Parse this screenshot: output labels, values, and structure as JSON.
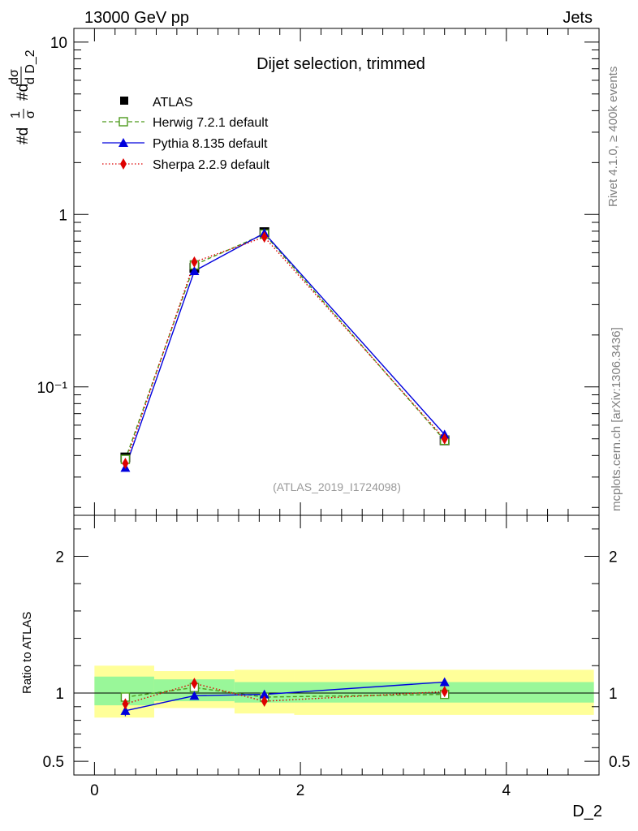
{
  "header": {
    "left_label": "13000 GeV pp",
    "right_label": "Jets"
  },
  "side_labels": {
    "rivet": "Rivet 4.1.0, ≥ 400k events",
    "site": "mcplots.cern.ch [arXiv:1306.3436]"
  },
  "chart_data": [
    {
      "type": "line",
      "panel": "main",
      "title": "Dijet selection, trimmed",
      "analysis_tag": "(ATLAS_2019_I1724098)",
      "xlabel": "D_2",
      "ylabel": "#d1/σ #d dσ/d D_2",
      "yscale": "log",
      "xlim": [
        -0.2,
        4.9
      ],
      "ylim": [
        0.018,
        12
      ],
      "y_ticks": [
        {
          "value": 10,
          "label": "10"
        },
        {
          "value": 1,
          "label": "1"
        },
        {
          "value": 0.1,
          "label": "10⁻¹"
        }
      ],
      "x": [
        0.3,
        0.97,
        1.65,
        3.4
      ],
      "series": [
        {
          "name": "ATLAS",
          "marker": "filled-square",
          "color": "#000000",
          "style": "points",
          "values": [
            0.039,
            0.49,
            0.79,
            0.049
          ]
        },
        {
          "name": "Herwig 7.2.1 default",
          "marker": "open-square",
          "color": "#4d9a1c",
          "style": "dashed",
          "values": [
            0.038,
            0.51,
            0.77,
            0.049
          ]
        },
        {
          "name": "Pythia 8.135 default",
          "marker": "triangle",
          "color": "#0000dd",
          "style": "solid",
          "values": [
            0.034,
            0.47,
            0.78,
            0.053
          ]
        },
        {
          "name": "Sherpa 2.2.9 default",
          "marker": "diamond",
          "color": "#dd0000",
          "style": "dotted",
          "values": [
            0.036,
            0.53,
            0.74,
            0.05
          ]
        }
      ]
    },
    {
      "type": "line",
      "panel": "ratio",
      "xlabel": "D_2",
      "ylabel": "Ratio to ATLAS",
      "xlim": [
        -0.2,
        4.9
      ],
      "ylim": [
        0.4,
        2.3
      ],
      "x_ticks": [
        0,
        2,
        4
      ],
      "y_ticks": [
        0.5,
        1,
        2
      ],
      "reference": 1,
      "bins": [
        {
          "xlo": 0,
          "xhi": 0.58,
          "inner": [
            0.91,
            1.12
          ],
          "outer": [
            0.82,
            1.2
          ]
        },
        {
          "xlo": 0.58,
          "xhi": 1.36,
          "inner": [
            0.94,
            1.1
          ],
          "outer": [
            0.89,
            1.16
          ]
        },
        {
          "xlo": 1.36,
          "xhi": 1.94,
          "inner": [
            0.93,
            1.08
          ],
          "outer": [
            0.85,
            1.17
          ]
        },
        {
          "xlo": 1.94,
          "xhi": 4.85,
          "inner": [
            0.93,
            1.08
          ],
          "outer": [
            0.84,
            1.17
          ]
        }
      ],
      "band_colors": {
        "inner": "#99f799",
        "outer": "#ffff99"
      },
      "x": [
        0.3,
        0.97,
        1.65,
        3.4
      ],
      "series": [
        {
          "name": "Herwig 7.2.1 default",
          "marker": "open-square",
          "color": "#4d9a1c",
          "style": "dashed",
          "values": [
            0.97,
            1.04,
            0.97,
            0.99
          ]
        },
        {
          "name": "Pythia 8.135 default",
          "marker": "triangle",
          "color": "#0000dd",
          "style": "solid",
          "values": [
            0.87,
            0.98,
            0.99,
            1.08
          ],
          "errors": [
            0.04,
            0,
            0,
            0
          ]
        },
        {
          "name": "Sherpa 2.2.9 default",
          "marker": "diamond",
          "color": "#dd0000",
          "style": "dotted",
          "values": [
            0.92,
            1.07,
            0.94,
            1.01
          ]
        }
      ]
    }
  ]
}
